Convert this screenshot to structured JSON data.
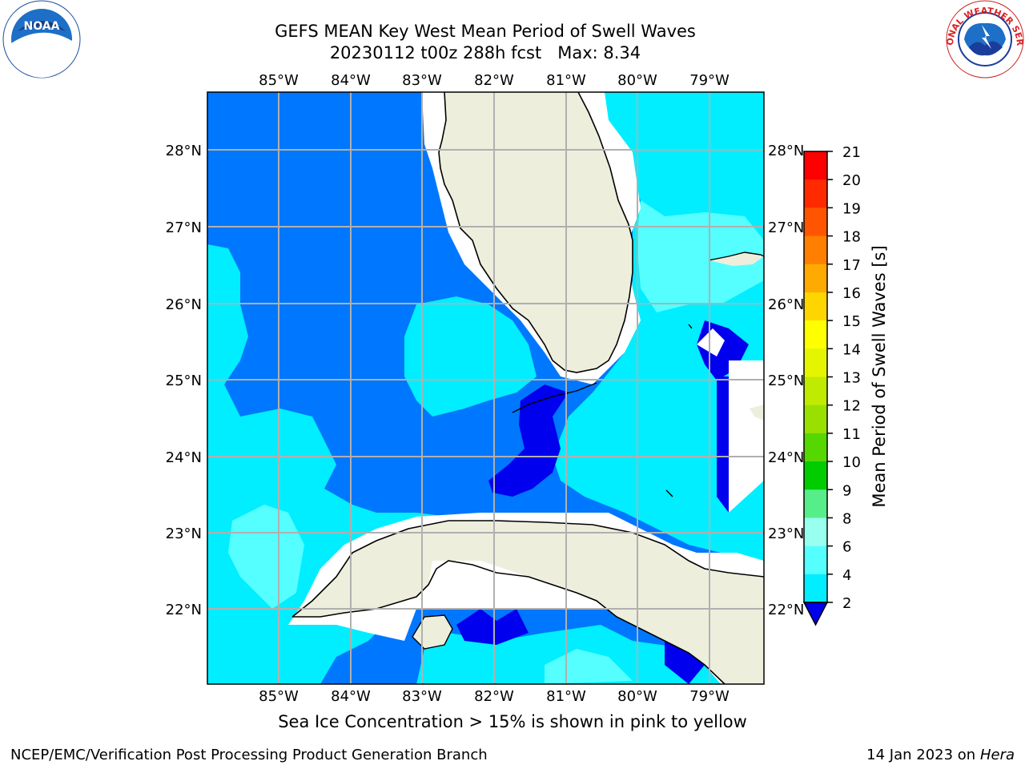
{
  "title_line1": "GEFS MEAN Key West Mean Period of Swell Waves",
  "title_line2": "20230112 t00z 288h fcst   Max: 8.34",
  "lon_labels": [
    "85°W",
    "84°W",
    "83°W",
    "82°W",
    "81°W",
    "80°W",
    "79°W"
  ],
  "lat_labels": [
    "28°N",
    "27°N",
    "26°N",
    "25°N",
    "24°N",
    "23°N",
    "22°N"
  ],
  "colorbar": {
    "label": "Mean Period of Swell Waves [s]",
    "ticks": [
      "21",
      "20",
      "19",
      "18",
      "17",
      "16",
      "15",
      "14",
      "13",
      "12",
      "11",
      "10",
      "9",
      "8",
      "6",
      "4",
      "2"
    ],
    "colors": [
      "#ff0000",
      "#ff2a00",
      "#ff5500",
      "#ff8000",
      "#ffaa00",
      "#ffd500",
      "#ffff00",
      "#e5f500",
      "#c0ea00",
      "#99e000",
      "#55d700",
      "#00cc00",
      "#55ee88",
      "#99ffee",
      "#55ffff",
      "#00eeff",
      "#0077ff"
    ],
    "under_color": "#0000ee"
  },
  "colors": {
    "land": "#eeeedd",
    "level_2_4": "#0077ff",
    "level_4_6": "#00eeff",
    "level_6_8": "#55ffff",
    "level_under_2": "#0000ee",
    "grid": "#b0b0b0"
  },
  "note": "Sea Ice Concentration > 15% is shown in pink to yellow",
  "footer_left": "NCEP/EMC/Verification Post Processing Product Generation Branch",
  "footer_date": "14 Jan 2023 on ",
  "footer_host": "Hera",
  "logo_left_text": "NOAA",
  "logo_right_text": "NATIONAL WEATHER SERVICE"
}
